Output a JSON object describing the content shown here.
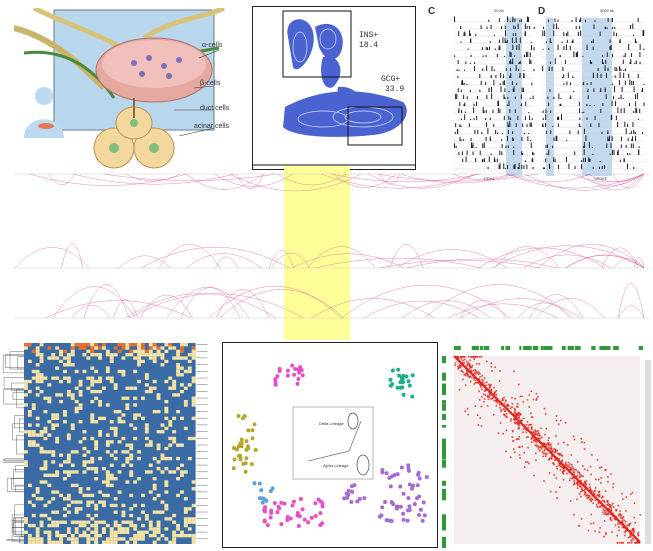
{
  "pancreas": {
    "labels": {
      "alpha": "α-cells",
      "beta": "β-cells",
      "duct": "duct cells",
      "acinar": "acinar cells"
    }
  },
  "flow": {
    "ins_label": "INS+",
    "ins_value": "18.4",
    "gcg_label": "GCG+",
    "gcg_value": "33.9"
  },
  "tracks": {
    "panel_c_letter": "C",
    "panel_d_letter": "D",
    "panel_c_gene": "PDX1",
    "panel_d_gene": "SPDEF",
    "scale_c": "20 kb",
    "scale_d": "3000 kb"
  },
  "colors": {
    "highlight": "#ffff99",
    "track_band": "#a9c9ea",
    "arc": "#d63c8c",
    "heatmap_low": "#3a6ba5",
    "heatmap_high": "#f4e3a4",
    "heatmap_hot": "#e8702a",
    "hic_red": "#e3241b",
    "hic_green": "#2f9a3a",
    "tsne_purple": "#a56bd4",
    "tsne_pink": "#e64fc5",
    "tsne_teal": "#1fae8c"
  },
  "tsne": {
    "lineage_top": "Delta Lineage",
    "lineage_bottom": "Alpha Lineage"
  }
}
